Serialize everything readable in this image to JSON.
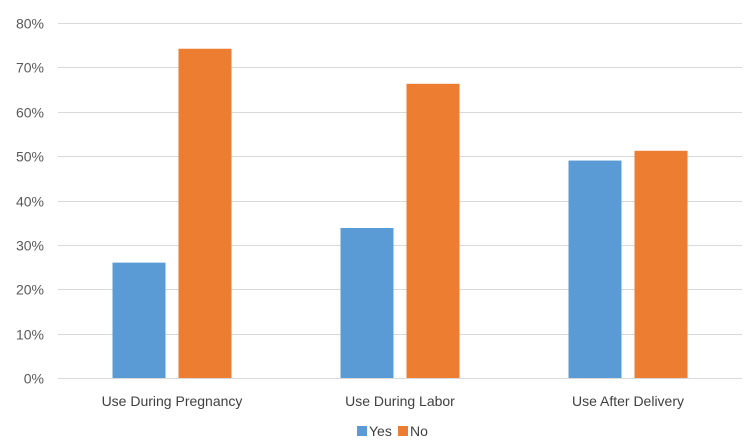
{
  "chart_data": {
    "type": "bar",
    "categories": [
      "Use During Pregnancy",
      "Use During Labor",
      "Use After Delivery"
    ],
    "series": [
      {
        "name": "Yes",
        "values": [
          26,
          33.8,
          49
        ],
        "color": "#5B9BD5"
      },
      {
        "name": "No",
        "values": [
          74.2,
          66.3,
          51.2
        ],
        "color": "#ED7D31"
      }
    ],
    "ylim": [
      0,
      80
    ],
    "yticks": [
      0,
      10,
      20,
      30,
      40,
      50,
      60,
      70,
      80
    ],
    "ytick_format": "percent",
    "grid": true,
    "legend": "bottom-center",
    "title": "",
    "xlabel": "",
    "ylabel": ""
  }
}
